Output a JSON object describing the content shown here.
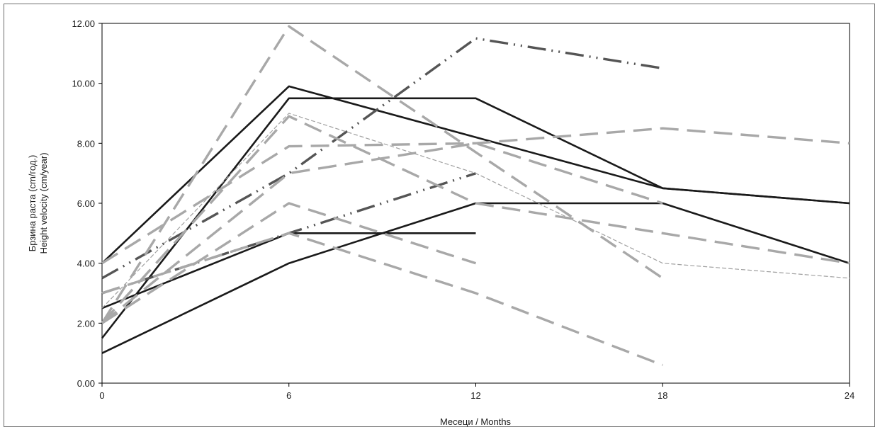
{
  "chart_data": {
    "type": "line",
    "xlabel": "Месеци / Months",
    "ylabel_lines": [
      "Брзина раста (cm/год.)",
      "Height velocity (cm/year)"
    ],
    "xlim": [
      0,
      24
    ],
    "ylim": [
      0,
      12
    ],
    "x_ticks": [
      "0",
      "6",
      "12",
      "18",
      "24"
    ],
    "y_ticks": [
      "0.00",
      "2.00",
      "4.00",
      "6.00",
      "8.00",
      "10.00",
      "12.00"
    ],
    "grid": false,
    "legend": "none",
    "series": [
      {
        "style": "solid-black",
        "x": [
          0,
          6,
          18,
          24
        ],
        "y": [
          4.0,
          9.9,
          6.5,
          6.0
        ]
      },
      {
        "style": "solid-black",
        "x": [
          0,
          6,
          12,
          18,
          24
        ],
        "y": [
          1.5,
          9.5,
          9.5,
          6.5,
          6.0
        ]
      },
      {
        "style": "solid-black",
        "x": [
          0,
          6,
          12,
          18,
          24
        ],
        "y": [
          1.0,
          4.0,
          6.0,
          6.0,
          4.0
        ]
      },
      {
        "style": "solid-black",
        "x": [
          0,
          6,
          12
        ],
        "y": [
          2.5,
          5.0,
          5.0
        ]
      },
      {
        "style": "dashdot-darkgray",
        "x": [
          0,
          6,
          12,
          18
        ],
        "y": [
          3.5,
          7.0,
          11.5,
          10.5
        ]
      },
      {
        "style": "dashdot-darkgray",
        "x": [
          0,
          6,
          12
        ],
        "y": [
          3.0,
          5.0,
          7.0
        ]
      },
      {
        "style": "dash-gray",
        "x": [
          0,
          6,
          18
        ],
        "y": [
          2.0,
          11.9,
          3.5
        ]
      },
      {
        "style": "dash-gray",
        "x": [
          0,
          6,
          12,
          18,
          24
        ],
        "y": [
          4.0,
          7.9,
          8.0,
          8.5,
          8.0
        ]
      },
      {
        "style": "dash-gray",
        "x": [
          0,
          6,
          12,
          24
        ],
        "y": [
          2.0,
          8.9,
          6.0,
          4.0
        ]
      },
      {
        "style": "dash-gray",
        "x": [
          0,
          6,
          12
        ],
        "y": [
          2.0,
          6.0,
          4.0
        ]
      },
      {
        "style": "dash-gray",
        "x": [
          0,
          6,
          12,
          18
        ],
        "y": [
          3.0,
          5.0,
          3.0,
          0.6
        ]
      },
      {
        "style": "dash-gray",
        "x": [
          0,
          6,
          12,
          18
        ],
        "y": [
          2.0,
          7.0,
          8.0,
          6.0
        ]
      },
      {
        "style": "thin-dash-lightgray",
        "x": [
          0,
          6,
          12,
          18,
          24
        ],
        "y": [
          2.5,
          9.0,
          7.0,
          4.0,
          3.5
        ]
      }
    ]
  },
  "colors": {
    "solid-black": "#1a1a1a",
    "dashdot-darkgray": "#555555",
    "dash-gray": "#a8a8a8",
    "thin-dash-lightgray": "#a0a0a0",
    "axis": "#000000"
  }
}
